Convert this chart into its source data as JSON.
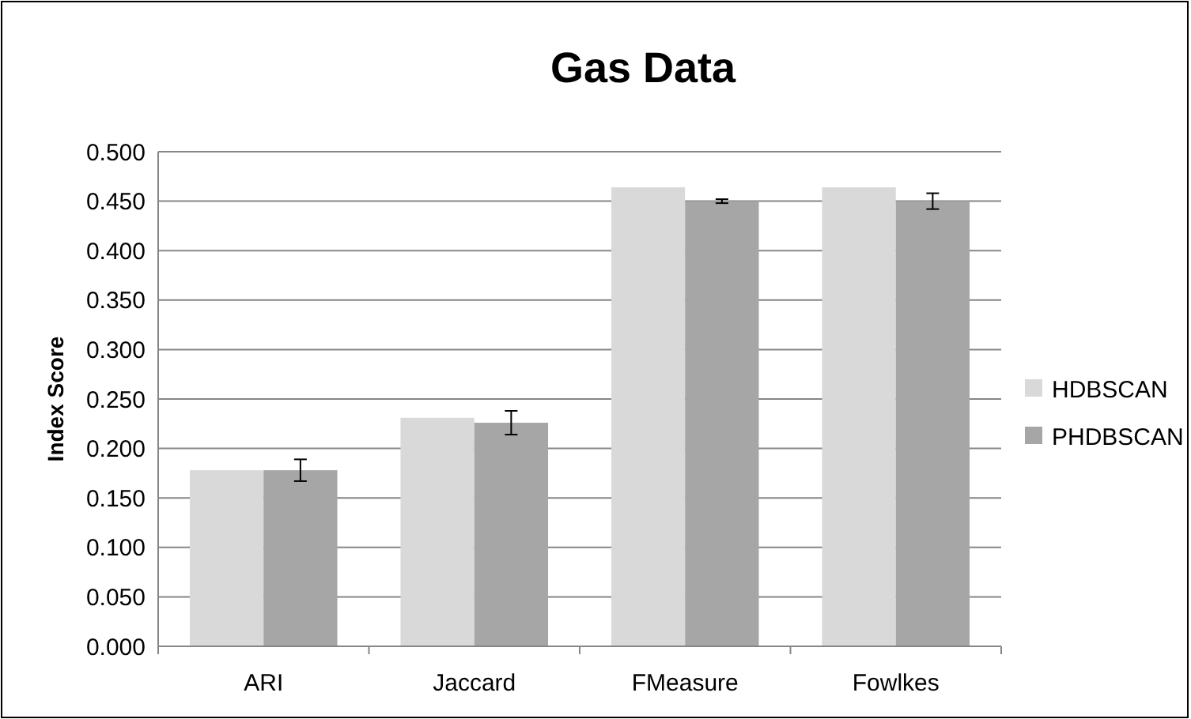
{
  "chart_data": {
    "type": "bar",
    "title": "Gas Data",
    "ylabel": "Index Score",
    "categories": [
      "ARI",
      "Jaccard",
      "FMeasure",
      "Fowlkes"
    ],
    "series": [
      {
        "name": "HDBSCAN",
        "color": "#d9d9d9",
        "values": [
          0.178,
          0.231,
          0.464,
          0.464
        ]
      },
      {
        "name": "PHDBSCAN",
        "color": "#a6a6a6",
        "values": [
          0.178,
          0.226,
          0.45,
          0.45
        ],
        "errors": [
          0.011,
          0.012,
          0.002,
          0.008
        ]
      }
    ],
    "ylim": [
      0,
      0.5
    ],
    "yticks": [
      {
        "value": 0,
        "label": "0.000"
      },
      {
        "value": 0.05,
        "label": "0.050"
      },
      {
        "value": 0.1,
        "label": "0.100"
      },
      {
        "value": 0.15,
        "label": "0.150"
      },
      {
        "value": 0.2,
        "label": "0.200"
      },
      {
        "value": 0.25,
        "label": "0.250"
      },
      {
        "value": 0.3,
        "label": "0.300"
      },
      {
        "value": 0.35,
        "label": "0.350"
      },
      {
        "value": 0.4,
        "label": "0.400"
      },
      {
        "value": 0.45,
        "label": "0.450"
      },
      {
        "value": 0.5,
        "label": "0.500"
      }
    ],
    "grid": "y",
    "legend": "right"
  }
}
